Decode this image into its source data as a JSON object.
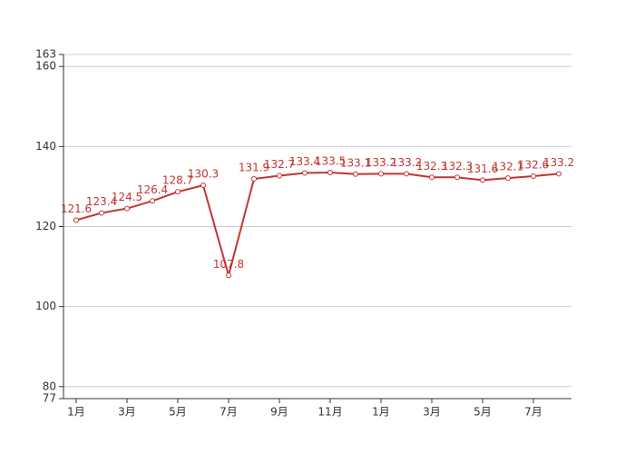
{
  "chart_data": {
    "type": "line",
    "categories": [
      "1月",
      null,
      "3月",
      null,
      "5月",
      null,
      "7月",
      null,
      "9月",
      null,
      "11月",
      null,
      "1月",
      null,
      "3月",
      null,
      "5月",
      null,
      "7月",
      null
    ],
    "values": [
      121.6,
      123.4,
      124.5,
      126.4,
      128.7,
      130.3,
      107.8,
      131.9,
      132.7,
      133.4,
      133.5,
      133.1,
      133.2,
      133.2,
      132.3,
      132.3,
      131.6,
      132.1,
      132.6,
      133.2
    ],
    "color": "#c23531",
    "ylim": [
      77,
      163
    ],
    "yticks": [
      77,
      80,
      100,
      120,
      140,
      160,
      163
    ],
    "grid": true
  }
}
